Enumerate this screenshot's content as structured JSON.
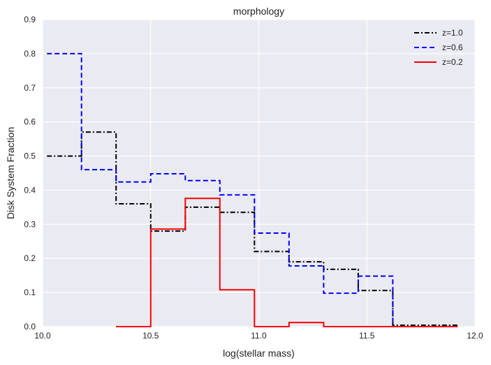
{
  "chart_data": {
    "type": "line",
    "step": true,
    "title": "morphology",
    "xlabel": "log(stellar mass)",
    "ylabel": "Disk System Fraction",
    "xlim": [
      10.0,
      12.0
    ],
    "ylim": [
      0.0,
      0.9
    ],
    "xticks": [
      "10.0",
      "10.5",
      "11.0",
      "11.5",
      "12.0"
    ],
    "yticks": [
      "0.0",
      "0.1",
      "0.2",
      "0.3",
      "0.4",
      "0.5",
      "0.6",
      "0.7",
      "0.8",
      "0.9"
    ],
    "grid": true,
    "legend_position": "top-right",
    "background": "#eaeaf2",
    "series": [
      {
        "name": "z=1.0",
        "color": "#000000",
        "dash": "dashdot",
        "x": [
          10.02,
          10.18,
          10.18,
          10.34,
          10.34,
          10.5,
          10.5,
          10.66,
          10.66,
          10.82,
          10.82,
          10.98,
          10.98,
          11.14,
          11.14,
          11.3,
          11.3,
          11.46,
          11.46,
          11.62,
          11.62,
          11.78,
          11.78,
          11.92
        ],
        "y": [
          0.5,
          0.5,
          0.57,
          0.57,
          0.36,
          0.36,
          0.28,
          0.28,
          0.35,
          0.35,
          0.335,
          0.335,
          0.22,
          0.22,
          0.19,
          0.19,
          0.168,
          0.168,
          0.106,
          0.106,
          0.004,
          0.004,
          0.004,
          0.004
        ]
      },
      {
        "name": "z=0.6",
        "color": "#0000ff",
        "dash": "dashed",
        "x": [
          10.02,
          10.18,
          10.18,
          10.34,
          10.34,
          10.5,
          10.5,
          10.66,
          10.66,
          10.82,
          10.82,
          10.98,
          10.98,
          11.14,
          11.14,
          11.3,
          11.3,
          11.46,
          11.46,
          11.62,
          11.62,
          11.78,
          11.78,
          11.92
        ],
        "y": [
          0.8,
          0.8,
          0.46,
          0.46,
          0.424,
          0.424,
          0.448,
          0.448,
          0.428,
          0.428,
          0.386,
          0.386,
          0.274,
          0.274,
          0.178,
          0.178,
          0.098,
          0.098,
          0.148,
          0.148,
          0.0,
          0.0,
          0.0,
          0.0
        ]
      },
      {
        "name": "z=0.2",
        "color": "#ff0000",
        "dash": "solid",
        "x": [
          10.34,
          10.5,
          10.5,
          10.66,
          10.66,
          10.82,
          10.82,
          10.98,
          10.98,
          11.14,
          11.14,
          11.3,
          11.3,
          11.46,
          11.46,
          11.62,
          11.62,
          11.78,
          11.78,
          11.92
        ],
        "y": [
          0.0,
          0.0,
          0.286,
          0.286,
          0.376,
          0.376,
          0.108,
          0.108,
          0.0,
          0.0,
          0.012,
          0.012,
          0.0,
          0.0,
          0.0,
          0.0,
          0.0,
          0.0,
          0.0,
          0.0
        ]
      }
    ]
  }
}
